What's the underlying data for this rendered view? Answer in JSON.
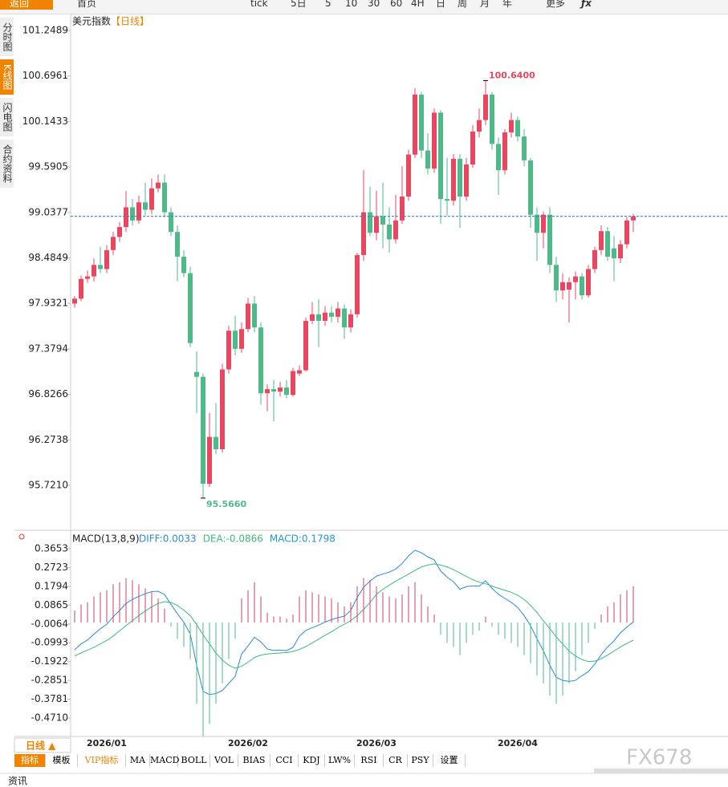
{
  "toolbar": {
    "back": "返回",
    "home": "首页",
    "items": [
      "tick",
      "5日",
      "5",
      "10",
      "30",
      "60",
      "4H",
      "日",
      "周",
      "月",
      "年"
    ],
    "more": "更多"
  },
  "side_tabs": [
    "分时图",
    "K线图",
    "闪电图",
    "合约资料"
  ],
  "chart_data": [
    {
      "type": "candlestick",
      "title": "美元指数",
      "period": "【日线】",
      "up_color": "#e8475f",
      "down_color": "#4fb98a",
      "line_color": "#2a7fbf",
      "high_label": "100.6400",
      "low_label": "95.5660",
      "ylim": [
        95.185,
        101.424
      ],
      "yticks": [
        101.2489,
        100.6961,
        100.1433,
        99.5905,
        99.0377,
        98.4849,
        97.9321,
        97.3794,
        96.8266,
        96.2738,
        {
          "value": 95.721,
          "label": "95.7210"
        }
      ],
      "categories": [
        null,
        null,
        null,
        null,
        null,
        "2026/01",
        null,
        null,
        null,
        null,
        null,
        null,
        null,
        null,
        null,
        null,
        null,
        null,
        null,
        null,
        null,
        null,
        null,
        null,
        null,
        null,
        null,
        "2026/02",
        null,
        null,
        null,
        null,
        null,
        null,
        null,
        null,
        null,
        null,
        null,
        null,
        null,
        null,
        null,
        null,
        null,
        null,
        null,
        "2026/03",
        null,
        null,
        null,
        null,
        null,
        null,
        null,
        null,
        null,
        null,
        null,
        null,
        null,
        null,
        null,
        null,
        null,
        null,
        null,
        null,
        null,
        "2026/04",
        null,
        null,
        null,
        null,
        null,
        null,
        null,
        null,
        null,
        null,
        null,
        null,
        null,
        null,
        null,
        null,
        null,
        null
      ],
      "ohlc": [
        [
          97.93,
          98.02,
          97.88,
          97.99
        ],
        [
          97.99,
          98.27,
          97.96,
          98.23
        ],
        [
          98.23,
          98.33,
          98.18,
          98.26
        ],
        [
          98.26,
          98.48,
          98.2,
          98.4
        ],
        [
          98.4,
          98.62,
          98.3,
          98.35
        ],
        [
          98.35,
          98.64,
          98.3,
          98.58
        ],
        [
          98.58,
          98.8,
          98.52,
          98.74
        ],
        [
          98.74,
          98.92,
          98.68,
          98.86
        ],
        [
          98.86,
          99.3,
          98.8,
          99.1
        ],
        [
          99.1,
          99.2,
          98.88,
          98.94
        ],
        [
          98.94,
          99.24,
          98.9,
          99.16
        ],
        [
          99.16,
          99.4,
          99,
          99.07
        ],
        [
          99.07,
          99.45,
          99.02,
          99.33
        ],
        [
          99.33,
          99.5,
          99.28,
          99.4
        ],
        [
          99.4,
          99.5,
          98.98,
          99.04
        ],
        [
          99.04,
          99.1,
          98.75,
          98.8
        ],
        [
          98.8,
          98.88,
          98.2,
          98.5
        ],
        [
          98.5,
          98.58,
          98.25,
          98.3
        ],
        [
          98.3,
          98.38,
          97.4,
          97.45
        ],
        [
          97.1,
          97.35,
          96.6,
          97.04
        ],
        [
          97.04,
          97.08,
          95.566,
          95.74
        ],
        [
          95.74,
          96.6,
          95.7,
          96.31
        ],
        [
          96.31,
          96.72,
          96.1,
          96.16
        ],
        [
          96.16,
          97.2,
          96.12,
          97.13
        ],
        [
          97.13,
          97.66,
          97.08,
          97.6
        ],
        [
          97.6,
          97.78,
          97.3,
          97.38
        ],
        [
          97.38,
          97.7,
          97.33,
          97.62
        ],
        [
          97.62,
          98,
          97.58,
          97.93
        ],
        [
          97.93,
          98.02,
          97.58,
          97.64
        ],
        [
          97.64,
          97.7,
          96.7,
          96.84
        ],
        [
          96.84,
          96.95,
          96.62,
          96.89
        ],
        [
          96.89,
          97,
          96.5,
          96.86
        ],
        [
          96.86,
          96.98,
          96.8,
          96.91
        ],
        [
          96.91,
          97,
          96.78,
          96.82
        ],
        [
          96.82,
          97.15,
          96.8,
          97.11
        ],
        [
          97.08,
          97.18,
          97.05,
          97.12
        ],
        [
          97.12,
          97.76,
          97.1,
          97.72
        ],
        [
          97.72,
          97.95,
          97.68,
          97.8
        ],
        [
          97.8,
          97.98,
          97.4,
          97.72
        ],
        [
          97.72,
          97.9,
          97.66,
          97.82
        ],
        [
          97.82,
          97.9,
          97.7,
          97.77
        ],
        [
          97.77,
          97.95,
          97.7,
          97.87
        ],
        [
          97.87,
          97.92,
          97.5,
          97.64
        ],
        [
          97.64,
          97.86,
          97.58,
          97.8
        ],
        [
          97.8,
          98.55,
          97.76,
          98.52
        ],
        [
          98.52,
          99.55,
          98.45,
          99.04
        ],
        [
          99.04,
          99.35,
          98.75,
          98.79
        ],
        [
          98.79,
          99.3,
          98.7,
          98.99
        ],
        [
          98.99,
          99.4,
          98.6,
          98.89
        ],
        [
          98.89,
          99.1,
          98.55,
          98.71
        ],
        [
          98.71,
          99.25,
          98.66,
          98.94
        ],
        [
          98.94,
          99.6,
          98.9,
          99.23
        ],
        [
          99.23,
          99.8,
          99.18,
          99.74
        ],
        [
          99.74,
          100.55,
          99.7,
          100.47
        ],
        [
          100.47,
          100.5,
          99.7,
          99.79
        ],
        [
          99.79,
          100,
          99.5,
          99.57
        ],
        [
          99.57,
          100.3,
          99.52,
          100.25
        ],
        [
          100.25,
          100.28,
          98.9,
          99.2
        ],
        [
          99.2,
          99.7,
          99,
          99.18
        ],
        [
          99.18,
          99.75,
          99.12,
          99.69
        ],
        [
          99.69,
          99.75,
          98.85,
          99.23
        ],
        [
          99.23,
          99.7,
          99.18,
          99.62
        ],
        [
          99.62,
          100.1,
          99.58,
          100.02
        ],
        [
          100.02,
          100.3,
          99.95,
          100.16
        ],
        [
          100.16,
          100.64,
          100.1,
          100.47
        ],
        [
          100.47,
          100.5,
          99.8,
          99.87
        ],
        [
          99.87,
          99.95,
          99.25,
          99.55
        ],
        [
          99.55,
          100.05,
          99.5,
          100.01
        ],
        [
          100.01,
          100.25,
          99.95,
          100.16
        ],
        [
          100.16,
          100.2,
          99.9,
          99.96
        ],
        [
          99.96,
          100.05,
          99.6,
          99.67
        ],
        [
          99.67,
          99.7,
          98.85,
          99.01
        ],
        [
          99.01,
          99.1,
          98.45,
          98.79
        ],
        [
          98.79,
          99.05,
          98.6,
          99.01
        ],
        [
          99.01,
          99.1,
          98.3,
          98.4
        ],
        [
          98.4,
          98.5,
          97.95,
          98.09
        ],
        [
          98.09,
          98.3,
          97.98,
          98.19
        ],
        [
          98.1,
          98.25,
          97.7,
          98.19
        ],
        [
          98.19,
          98.32,
          97.98,
          98.26
        ],
        [
          98.26,
          98.3,
          97.98,
          98.03
        ],
        [
          98.03,
          98.4,
          98,
          98.35
        ],
        [
          98.35,
          98.62,
          98.3,
          98.58
        ],
        [
          98.58,
          98.88,
          98.52,
          98.81
        ],
        [
          98.81,
          98.86,
          98.45,
          98.5
        ],
        [
          98.6,
          98.75,
          98.2,
          98.48
        ],
        [
          98.48,
          98.7,
          98.42,
          98.65
        ],
        [
          98.65,
          98.98,
          98.6,
          98.94
        ],
        [
          98.94,
          99.02,
          98.8,
          98.99
        ]
      ]
    },
    {
      "type": "macd",
      "title": "MACD(13,8,9)",
      "up_color": "#c8466b",
      "down_color": "#4fb98a",
      "ylim": [
        -0.562,
        0.4404
      ],
      "yticks": [
        0.3653,
        0.2723,
        0.1794,
        0.0865,
        -0.0064,
        -0.0993,
        -0.1922,
        -0.2851,
        -0.3781,
        {
          "value": -0.471,
          "label": "-0.4710"
        }
      ],
      "series": [
        {
          "name": "DIFF:0.0033",
          "color": "#2a8bd8",
          "values": [
            -0.134,
            -0.105,
            -0.086,
            -0.057,
            -0.03,
            -0.008,
            0.029,
            0.06,
            0.095,
            0.115,
            0.13,
            0.143,
            0.153,
            0.155,
            0.139,
            0.09,
            0.045,
            0.002,
            -0.055,
            -0.21,
            -0.34,
            -0.355,
            -0.35,
            -0.335,
            -0.3,
            -0.265,
            -0.155,
            -0.115,
            -0.072,
            -0.095,
            -0.13,
            -0.137,
            -0.135,
            -0.138,
            -0.122,
            -0.067,
            -0.038,
            -0.025,
            -0.012,
            0.003,
            0.015,
            0.025,
            0.032,
            0.06,
            0.125,
            0.175,
            0.205,
            0.23,
            0.24,
            0.25,
            0.265,
            0.292,
            0.33,
            0.358,
            0.345,
            0.325,
            0.31,
            0.255,
            0.225,
            0.202,
            0.165,
            0.178,
            0.182,
            0.18,
            0.207,
            0.17,
            0.14,
            0.12,
            0.1,
            0.075,
            0.035,
            -0.015,
            -0.08,
            -0.14,
            -0.21,
            -0.27,
            -0.285,
            -0.29,
            -0.285,
            -0.262,
            -0.242,
            -0.205,
            -0.158,
            -0.12,
            -0.09,
            -0.05,
            -0.022,
            0.0033
          ]
        },
        {
          "name": "DEA:-0.0866",
          "color": "#3dbb7e",
          "values": [
            -0.164,
            -0.15,
            -0.136,
            -0.122,
            -0.105,
            -0.088,
            -0.066,
            -0.04,
            -0.015,
            0.01,
            0.035,
            0.058,
            0.078,
            0.095,
            0.104,
            0.1,
            0.085,
            0.062,
            0.035,
            -0.01,
            -0.06,
            -0.105,
            -0.15,
            -0.185,
            -0.21,
            -0.225,
            -0.215,
            -0.195,
            -0.172,
            -0.16,
            -0.155,
            -0.152,
            -0.15,
            -0.148,
            -0.142,
            -0.132,
            -0.118,
            -0.1,
            -0.082,
            -0.062,
            -0.045,
            -0.025,
            -0.008,
            0.01,
            0.035,
            0.065,
            0.1,
            0.14,
            0.165,
            0.185,
            0.205,
            0.222,
            0.24,
            0.258,
            0.275,
            0.285,
            0.29,
            0.285,
            0.275,
            0.262,
            0.245,
            0.228,
            0.212,
            0.2,
            0.192,
            0.18,
            0.17,
            0.16,
            0.15,
            0.135,
            0.115,
            0.085,
            0.05,
            0.01,
            -0.03,
            -0.07,
            -0.105,
            -0.14,
            -0.165,
            -0.182,
            -0.192,
            -0.19,
            -0.178,
            -0.16,
            -0.14,
            -0.12,
            -0.102,
            -0.0866
          ]
        },
        {
          "name": "MACD:0.1798",
          "color": "#1e9ad6",
          "values": [
            0.06,
            0.09,
            0.1,
            0.13,
            0.15,
            0.16,
            0.19,
            0.2,
            0.22,
            0.21,
            0.19,
            0.17,
            0.15,
            0.12,
            0.07,
            -0.02,
            -0.08,
            -0.12,
            -0.18,
            -0.4,
            -0.56,
            -0.5,
            -0.4,
            -0.3,
            -0.18,
            -0.08,
            0.12,
            0.16,
            0.2,
            0.13,
            0.05,
            0.03,
            0.03,
            0.02,
            0.04,
            0.13,
            0.16,
            0.15,
            0.14,
            0.13,
            0.12,
            0.1,
            0.08,
            0.1,
            0.18,
            0.22,
            0.21,
            0.18,
            0.15,
            0.13,
            0.12,
            0.14,
            0.18,
            0.2,
            0.14,
            0.08,
            0.04,
            -0.06,
            -0.1,
            -0.12,
            -0.16,
            -0.1,
            -0.06,
            -0.04,
            0.03,
            -0.02,
            -0.06,
            -0.08,
            -0.1,
            -0.12,
            -0.16,
            -0.2,
            -0.26,
            -0.3,
            -0.36,
            -0.4,
            -0.36,
            -0.3,
            -0.24,
            -0.16,
            -0.1,
            -0.03,
            0.04,
            0.08,
            0.1,
            0.14,
            0.16,
            0.1798
          ]
        }
      ]
    }
  ],
  "period_label": "日线 ▲",
  "indicator_tabs": [
    "指标",
    "模板",
    "VIP指标",
    "MA",
    "MACD",
    "BOLL",
    "VOL",
    "BIAS",
    "CCI",
    "KDJ",
    "LW%",
    "RSI",
    "CR",
    "PSY",
    "设置"
  ],
  "footer": "资讯",
  "watermark": "FX678"
}
